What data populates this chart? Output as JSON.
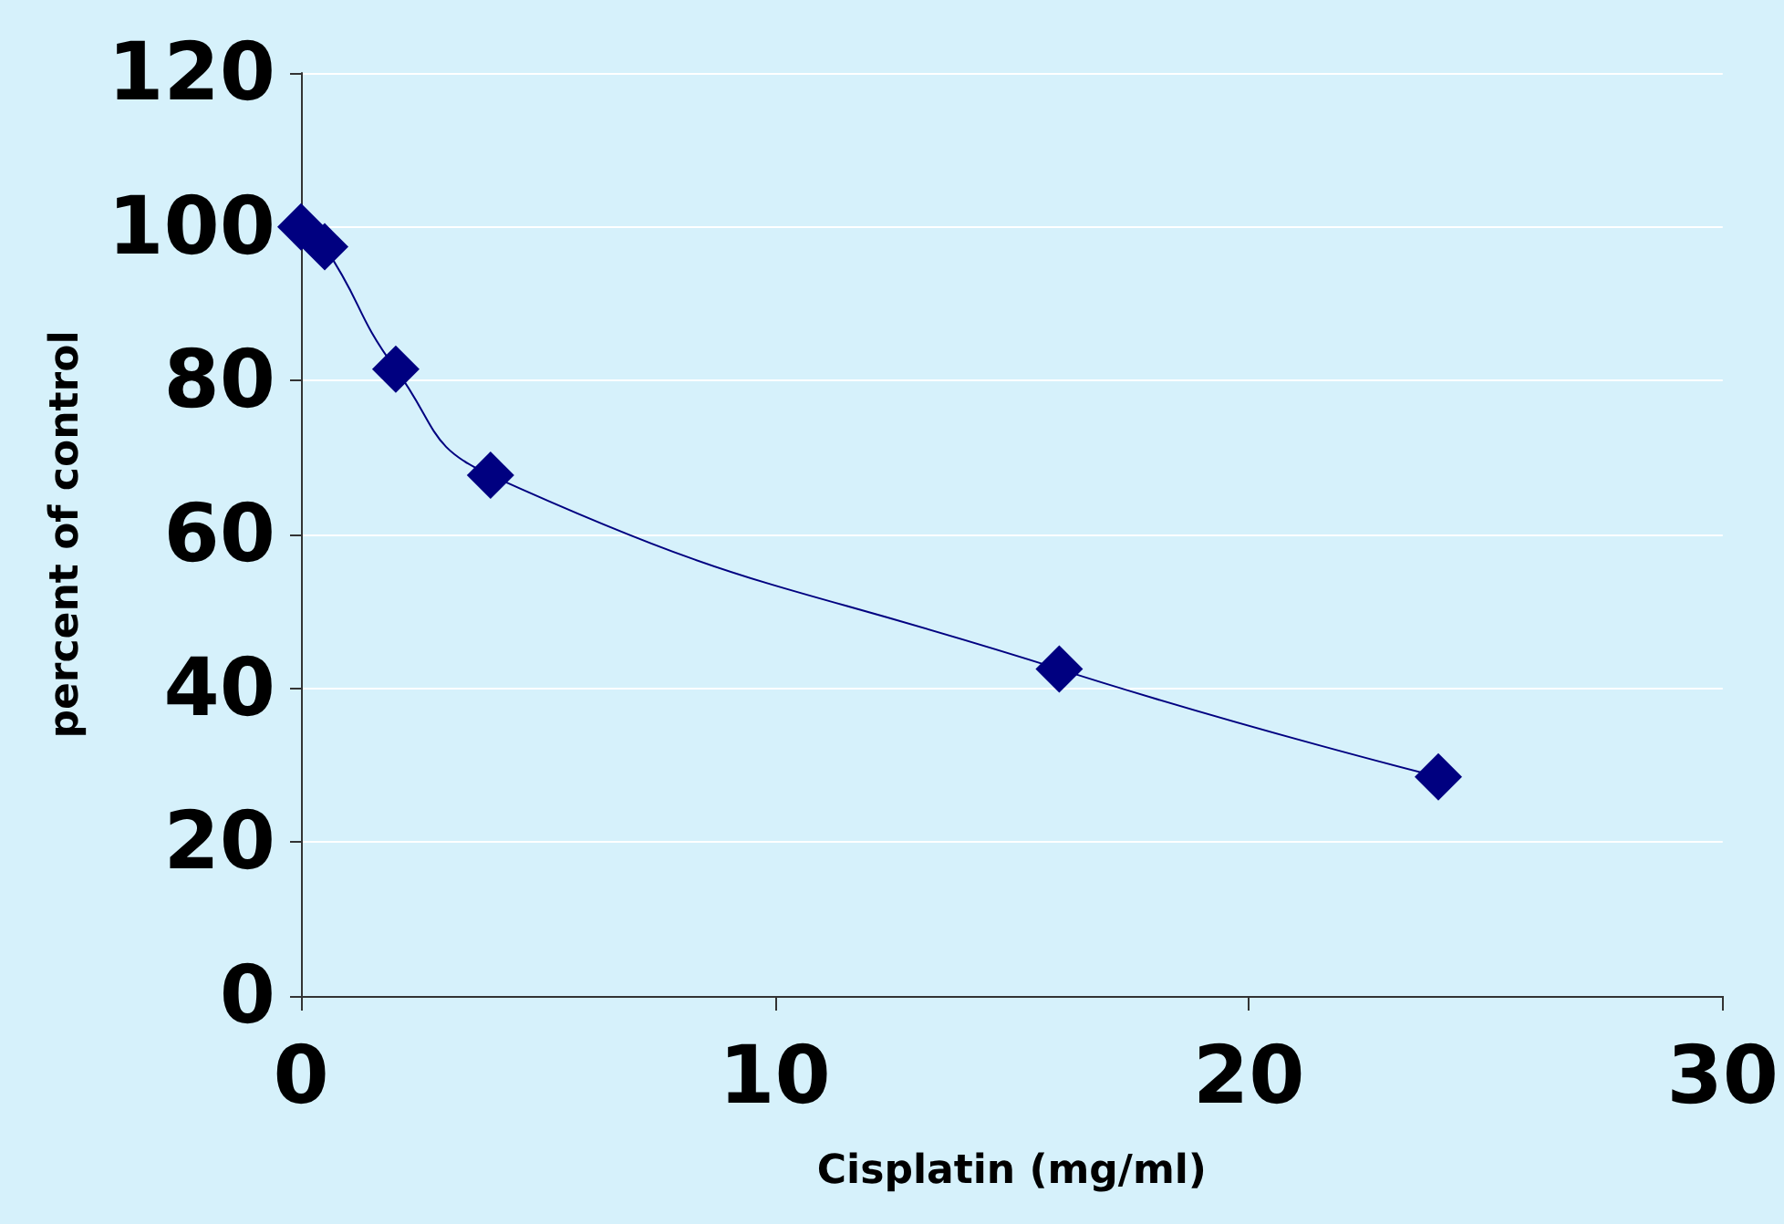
{
  "chart_data": {
    "type": "line",
    "xlabel": "Cisplatin (mg/ml)",
    "ylabel": "percent of control",
    "x": [
      0,
      0.5,
      2,
      4,
      16,
      24
    ],
    "values": [
      100,
      97.4,
      81.5,
      67.7,
      42.5,
      28.5
    ],
    "color": "#000080",
    "marker": "diamond",
    "line_style": "solid",
    "xlim": [
      0,
      30
    ],
    "xticks": [
      0,
      10,
      20,
      30
    ],
    "ylim": [
      0,
      120
    ],
    "yticks": [
      0,
      20,
      40,
      60,
      80,
      100,
      120
    ],
    "grid": "y"
  }
}
